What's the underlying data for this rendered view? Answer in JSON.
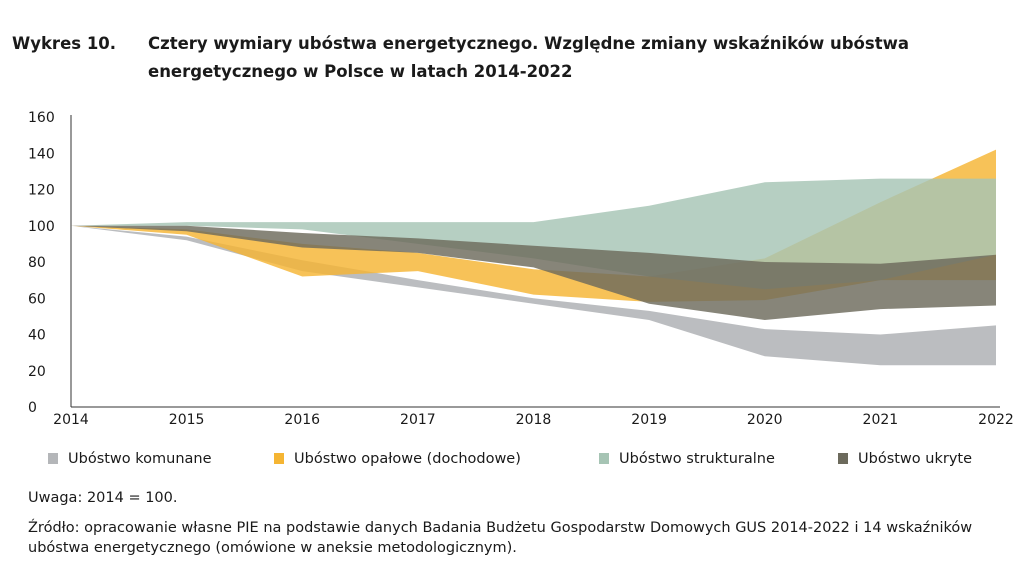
{
  "title": {
    "number": "Wykres 10.",
    "text": "Cztery wymiary ubóstwa energetycznego. Względne zmiany wskaźników ubóstwa energetycznego w Polsce w latach 2014-2022"
  },
  "chart_data": {
    "type": "area",
    "x": [
      "2014",
      "2015",
      "2016",
      "2017",
      "2018",
      "2019",
      "2020",
      "2021",
      "2022"
    ],
    "yticks": [
      "0",
      "20",
      "40",
      "60",
      "80",
      "100",
      "120",
      "140",
      "160"
    ],
    "ylim": [
      0,
      160
    ],
    "grid": false,
    "legend_position": "bottom",
    "series": [
      {
        "name": "Ubóstwo komunane",
        "color": "#b4b6b9",
        "upper": [
          100,
          94,
          81,
          70,
          60,
          53,
          43,
          40,
          45
        ],
        "lower": [
          100,
          92,
          75,
          66,
          57,
          48,
          28,
          23,
          23
        ]
      },
      {
        "name": "Ubóstwo opałowe (dochodowe)",
        "color": "#f5b533",
        "upper": [
          100,
          98,
          90,
          85,
          76,
          72,
          82,
          113,
          142
        ],
        "lower": [
          100,
          95,
          72,
          75,
          62,
          58,
          59,
          70,
          70
        ]
      },
      {
        "name": "Ubóstwo strukturalne",
        "color": "#a6c4b4",
        "upper": [
          100,
          102,
          102,
          102,
          102,
          111,
          124,
          126,
          126
        ],
        "lower": [
          100,
          100,
          98,
          90,
          82,
          72,
          65,
          70,
          84
        ]
      },
      {
        "name": "Ubóstwo ukryte",
        "color": "#6c6a5c",
        "upper": [
          100,
          100,
          96,
          93,
          89,
          85,
          80,
          79,
          84
        ],
        "lower": [
          100,
          97,
          88,
          85,
          77,
          57,
          48,
          54,
          56
        ]
      }
    ]
  },
  "legend": [
    {
      "label": "Ubóstwo komunane",
      "color": "#b4b6b9"
    },
    {
      "label": "Ubóstwo opałowe (dochodowe)",
      "color": "#f5b533"
    },
    {
      "label": "Ubóstwo strukturalne",
      "color": "#a6c4b4"
    },
    {
      "label": "Ubóstwo ukryte",
      "color": "#6c6a5c"
    }
  ],
  "note": "Uwaga: 2014 = 100.",
  "source": "Źródło: opracowanie własne PIE na podstawie danych Badania Budżetu Gospodarstw Domowych GUS 2014-2022 i 14 wskaźników ubóstwa energetycznego (omówione w aneksie metodologicznym)."
}
